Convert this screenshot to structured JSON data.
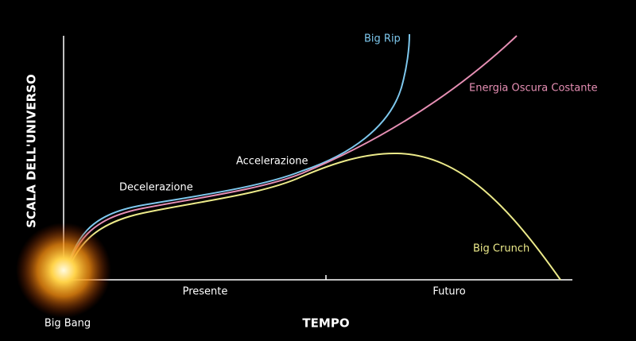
{
  "axes": {
    "y_label": "SCALA DELL'UNIVERSO",
    "x_label": "TEMPO"
  },
  "x_regions": [
    "Presente",
    "Futuro"
  ],
  "origin_label": "Big Bang",
  "phases": [
    "Decelerazione",
    "Accelerazione"
  ],
  "curves": [
    {
      "label": "Big Rip"
    },
    {
      "label": "Energia Oscura Costante"
    },
    {
      "label": "Big Crunch"
    }
  ]
}
